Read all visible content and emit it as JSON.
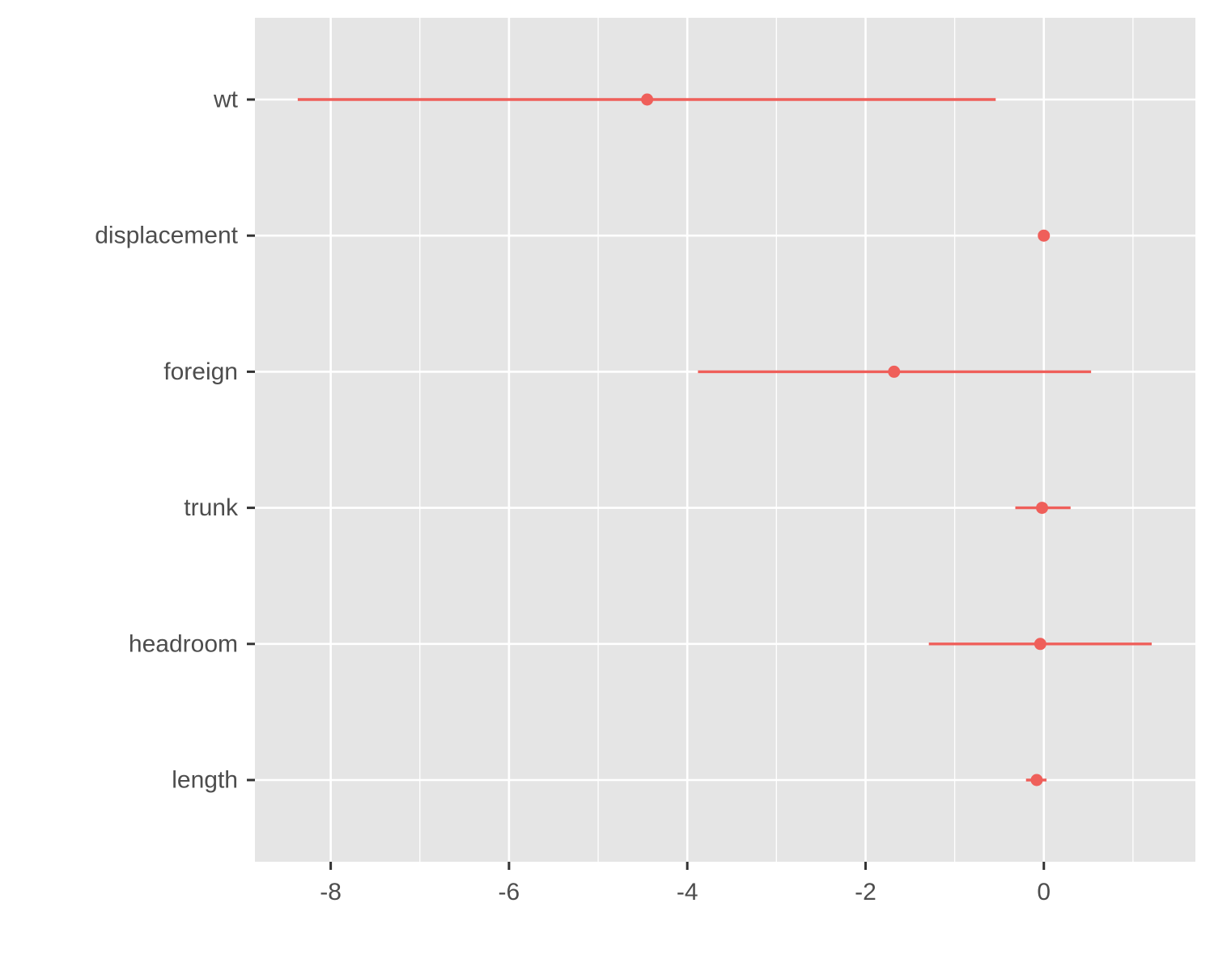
{
  "chart_data": {
    "type": "coefficient-plot",
    "title": "",
    "xlabel": "",
    "ylabel": "",
    "xlim": [
      -8.85,
      1.7
    ],
    "x_ticks_major": [
      -8,
      -6,
      -4,
      -2,
      0
    ],
    "x_tick_labels": [
      "-8",
      "-6",
      "-4",
      "-2",
      "0"
    ],
    "x_ticks_minor": [
      -7,
      -5,
      -3,
      -1,
      1
    ],
    "grid": true,
    "legend": "none",
    "colors": {
      "series": "#ef5f5a",
      "panel_background": "#e5e5e5",
      "grid": "#ffffff",
      "text": "#4d4d4d",
      "axis_tick": "#333333"
    },
    "categories": [
      "wt",
      "displacement",
      "foreign",
      "trunk",
      "headroom",
      "length"
    ],
    "estimates": [
      -4.45,
      0.0,
      -1.68,
      -0.02,
      -0.04,
      -0.08
    ],
    "conf_low": [
      -8.37,
      null,
      -3.88,
      -0.32,
      -1.29,
      -0.2
    ],
    "conf_high": [
      -0.54,
      null,
      0.53,
      0.3,
      1.21,
      0.03
    ]
  }
}
